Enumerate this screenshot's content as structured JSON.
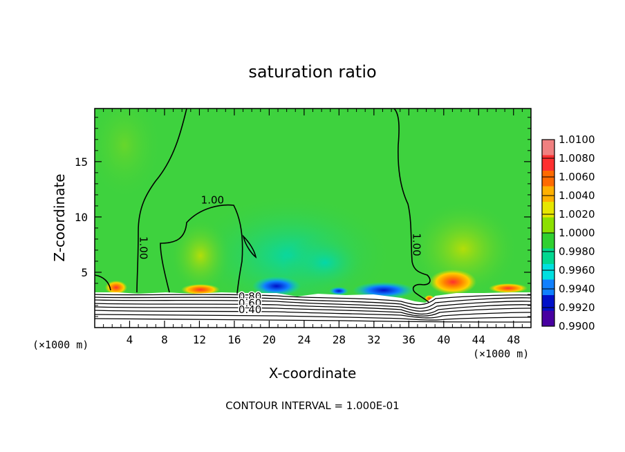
{
  "chart_data": {
    "type": "heatmap",
    "title": "saturation ratio",
    "xlabel": "X-coordinate",
    "ylabel": "Z-coordinate",
    "x_unit": "(×1000 m)",
    "z_unit": "(×1000 m)",
    "xlim": [
      0,
      50
    ],
    "ylim": [
      0,
      19.8
    ],
    "x_ticks": [
      4,
      8,
      12,
      16,
      20,
      24,
      28,
      32,
      36,
      40,
      44,
      48
    ],
    "y_ticks": [
      5,
      10,
      15
    ],
    "colorbar": {
      "levels": [
        "1.0100",
        "1.0080",
        "1.0060",
        "1.0040",
        "1.0020",
        "1.0000",
        "0.9980",
        "0.9960",
        "0.9940",
        "0.9920",
        "0.9900"
      ],
      "colors": [
        "#f08080",
        "#ff3030",
        "#ff6a00",
        "#ffb000",
        "#e6e600",
        "#8ce000",
        "#30d030",
        "#00d890",
        "#00e0e0",
        "#1080ff",
        "#0010c8",
        "#4800a0"
      ]
    },
    "background_color": "#3ed23e",
    "contour_labels": [
      "1.00",
      "1.00",
      "1.00",
      "0.80",
      "0.60",
      "0.40"
    ],
    "contour_label_positions": [
      [
        13.5,
        11.2
      ],
      [
        5.2,
        7.2
      ],
      [
        36.5,
        7.5
      ],
      [
        17.8,
        2.5
      ],
      [
        17.8,
        1.9
      ],
      [
        17.8,
        1.3
      ]
    ],
    "footer": "CONTOUR INTERVAL = 1.000E-01"
  }
}
